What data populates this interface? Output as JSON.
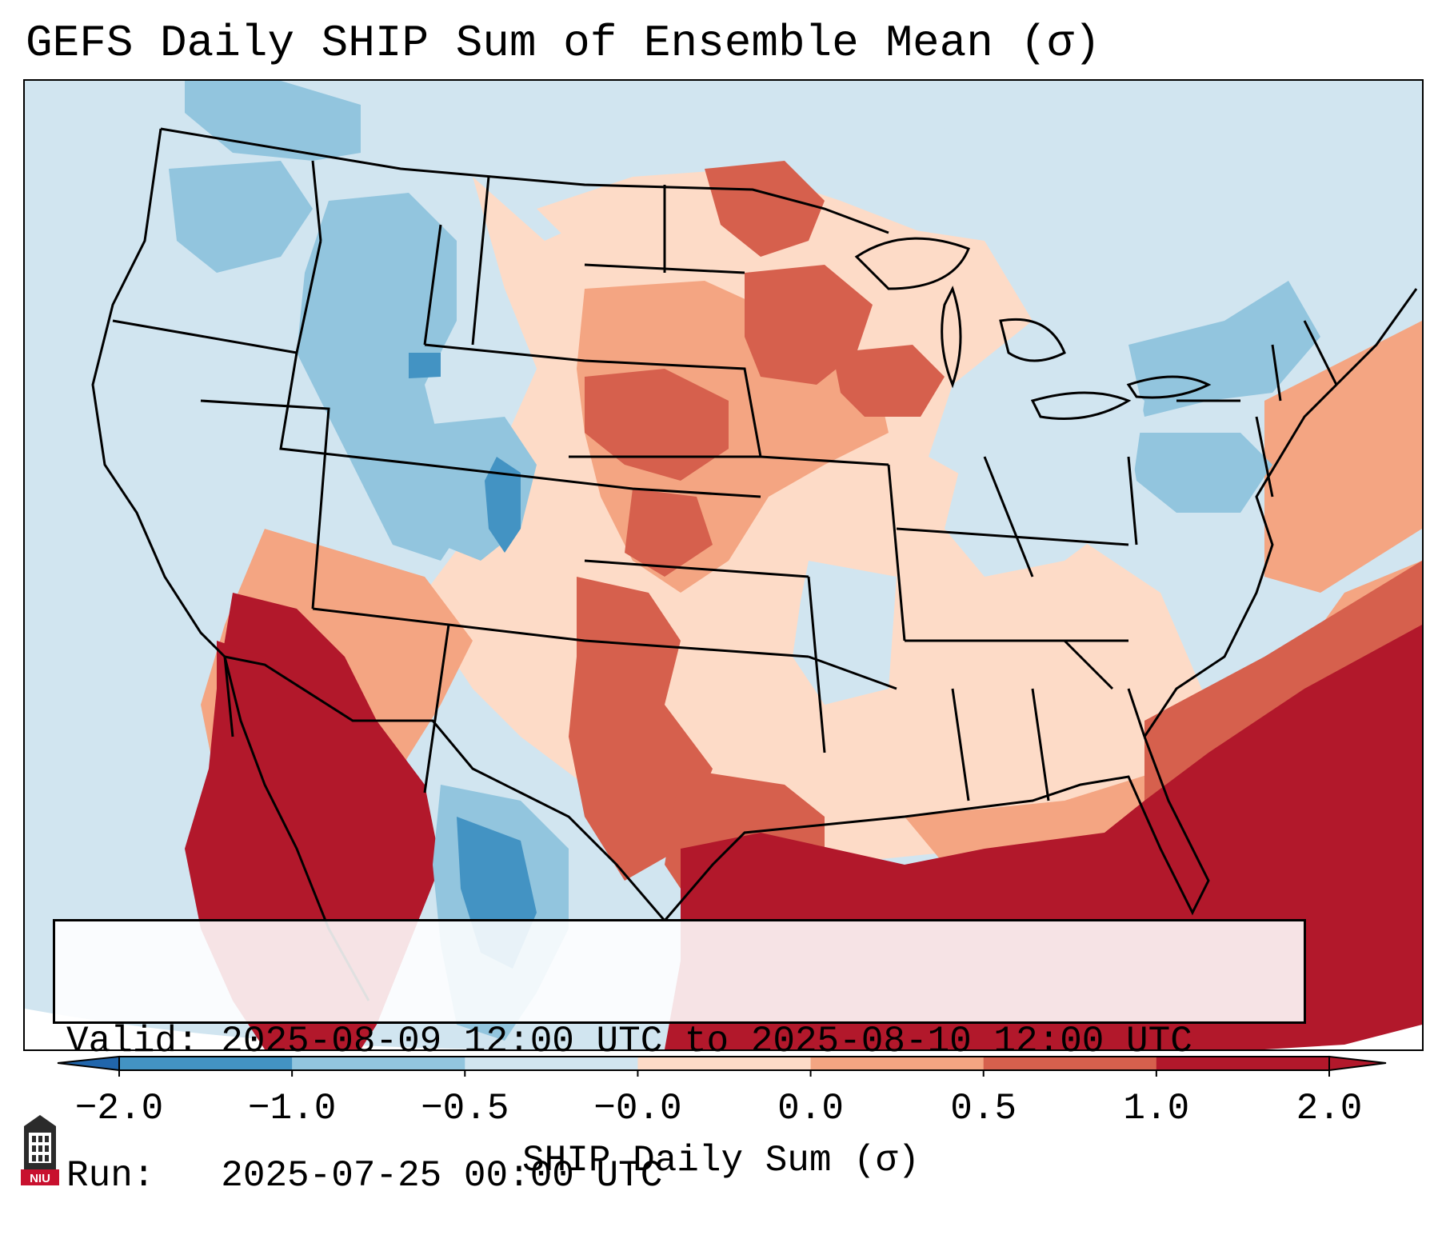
{
  "title": "GEFS Daily SHIP Sum of Ensemble Mean (σ)",
  "info": {
    "valid_line": "Valid: 2025-08-09 12:00 UTC to 2025-08-10 12:00 UTC",
    "run_line": "Run:   2025-07-25 00:00 UTC"
  },
  "colorbar": {
    "label": "SHIP Daily Sum (σ)",
    "ticks": [
      "−2.0",
      "−1.0",
      "−0.5",
      "−0.0",
      "0.0",
      "0.5",
      "1.0",
      "2.0"
    ],
    "colors": [
      "#4393c3",
      "#92c5de",
      "#d1e5f0",
      "#f7f7f7",
      "#fddbc7",
      "#f4a582",
      "#d6604d",
      "#b2182b"
    ],
    "under_color": "#2166ac",
    "over_color": "#b2182b"
  },
  "map": {
    "region": "Continental United States",
    "background_color": "#d1e5f0"
  },
  "logo": {
    "text": "NIU"
  }
}
